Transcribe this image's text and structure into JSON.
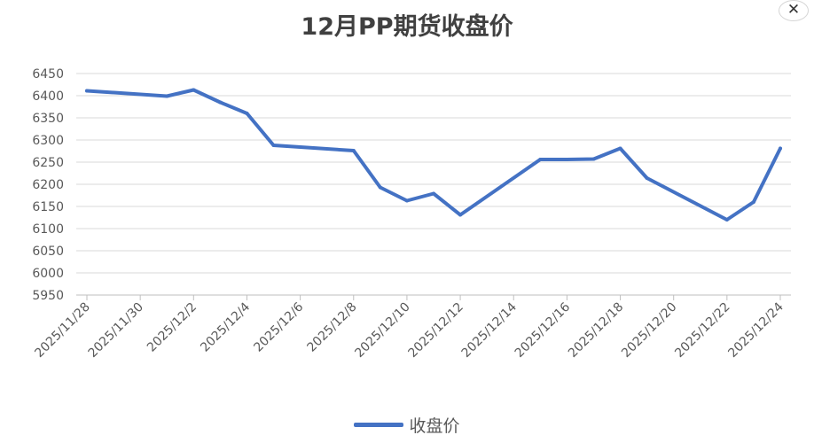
{
  "window": {
    "close_label": "✕",
    "close_icon": "close-icon"
  },
  "chart_data": {
    "type": "line",
    "title": "12月PP期货收盘价",
    "xlabel": "",
    "ylabel": "",
    "ylim": [
      5950,
      6450
    ],
    "yticks": [
      5950,
      6000,
      6050,
      6100,
      6150,
      6200,
      6250,
      6300,
      6350,
      6400,
      6450
    ],
    "xlim": [
      "2025/11/28",
      "2025/12/24"
    ],
    "xticks": [
      "2025/11/28",
      "2025/11/30",
      "2025/12/2",
      "2025/12/4",
      "2025/12/6",
      "2025/12/8",
      "2025/12/10",
      "2025/12/12",
      "2025/12/14",
      "2025/12/16",
      "2025/12/18",
      "2025/12/20",
      "2025/12/22",
      "2025/12/24"
    ],
    "grid": true,
    "legend_position": "bottom",
    "series": [
      {
        "name": "收盘价",
        "color": "#4472C4",
        "points": [
          {
            "x": "2025/11/28",
            "y": 6411
          },
          {
            "x": "2025/12/1",
            "y": 6399
          },
          {
            "x": "2025/12/2",
            "y": 6413
          },
          {
            "x": "2025/12/3",
            "y": 6385
          },
          {
            "x": "2025/12/4",
            "y": 6360
          },
          {
            "x": "2025/12/5",
            "y": 6288
          },
          {
            "x": "2025/12/8",
            "y": 6276
          },
          {
            "x": "2025/12/9",
            "y": 6193
          },
          {
            "x": "2025/12/10",
            "y": 6163
          },
          {
            "x": "2025/12/11",
            "y": 6179
          },
          {
            "x": "2025/12/12",
            "y": 6131
          },
          {
            "x": "2025/12/15",
            "y": 6256
          },
          {
            "x": "2025/12/16",
            "y": 6256
          },
          {
            "x": "2025/12/17",
            "y": 6257
          },
          {
            "x": "2025/12/18",
            "y": 6281
          },
          {
            "x": "2025/12/19",
            "y": 6214
          },
          {
            "x": "2025/12/22",
            "y": 6120
          },
          {
            "x": "2025/12/23",
            "y": 6160
          },
          {
            "x": "2025/12/24",
            "y": 6281
          }
        ]
      }
    ]
  }
}
